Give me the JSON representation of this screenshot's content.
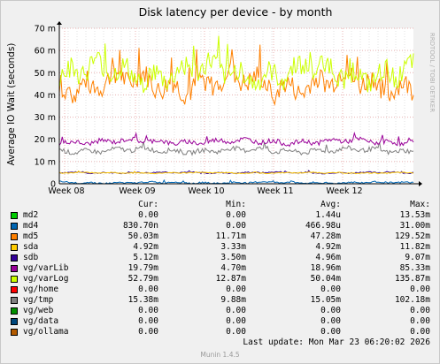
{
  "chart_data": {
    "type": "line",
    "title": "Disk latency per device - by month",
    "ylabel": "Average IO Wait (seconds)",
    "side_text": "RRDTOOL / TOBI OETIKER",
    "ylim": [
      0,
      70
    ],
    "ytick_labels": [
      "0",
      "10 m",
      "20 m",
      "30 m",
      "40 m",
      "50 m",
      "60 m",
      "70 m"
    ],
    "ytick_values": [
      0,
      10,
      20,
      30,
      40,
      50,
      60,
      70
    ],
    "xtick_labels": [
      "Week 08",
      "Week 09",
      "Week 10",
      "Week 11",
      "Week 12"
    ],
    "x_label_fraction": [
      0.015,
      0.215,
      0.41,
      0.605,
      0.8
    ],
    "grid": true,
    "columns": [
      "Cur:",
      "Min:",
      "Avg:",
      "Max:"
    ],
    "series": [
      {
        "name": "md2",
        "color": "#00cc00",
        "cur": "0.00",
        "min": "0.00",
        "avg": "1.44u",
        "max": "13.53m",
        "level": 0,
        "spread": 0
      },
      {
        "name": "md4",
        "color": "#0066b3",
        "cur": "830.70n",
        "min": "0.00",
        "avg": "466.98u",
        "max": "31.00m",
        "level": 0.5,
        "spread": 0.5
      },
      {
        "name": "md5",
        "color": "#ff8000",
        "cur": "50.03m",
        "min": "11.71m",
        "avg": "47.28m",
        "max": "129.52m",
        "level": 45,
        "spread": 7
      },
      {
        "name": "sda",
        "color": "#ffcc00",
        "cur": "4.92m",
        "min": "3.33m",
        "avg": "4.92m",
        "max": "11.82m",
        "level": 4.9,
        "spread": 0.3
      },
      {
        "name": "sdb",
        "color": "#330099",
        "cur": "5.12m",
        "min": "3.50m",
        "avg": "4.96m",
        "max": "9.07m",
        "level": 5.0,
        "spread": 0.4
      },
      {
        "name": "vg/varLib",
        "color": "#990099",
        "cur": "19.79m",
        "min": "4.70m",
        "avg": "18.96m",
        "max": "85.33m",
        "level": 19,
        "spread": 1.5
      },
      {
        "name": "vg/varLog",
        "color": "#ccff00",
        "cur": "52.79m",
        "min": "12.87m",
        "avg": "50.04m",
        "max": "135.87m",
        "level": 50,
        "spread": 7
      },
      {
        "name": "vg/home",
        "color": "#ff0000",
        "cur": "0.00",
        "min": "0.00",
        "avg": "0.00",
        "max": "0.00",
        "level": 0,
        "spread": 0
      },
      {
        "name": "vg/tmp",
        "color": "#808080",
        "cur": "15.38m",
        "min": "9.88m",
        "avg": "15.05m",
        "max": "102.18m",
        "level": 15,
        "spread": 1.5
      },
      {
        "name": "vg/web",
        "color": "#008f00",
        "cur": "0.00",
        "min": "0.00",
        "avg": "0.00",
        "max": "0.00",
        "level": 0,
        "spread": 0
      },
      {
        "name": "vg/data",
        "color": "#00487d",
        "cur": "0.00",
        "min": "0.00",
        "avg": "0.00",
        "max": "0.00",
        "level": 0,
        "spread": 0
      },
      {
        "name": "vg/ollama",
        "color": "#b35a00",
        "cur": "0.00",
        "min": "0.00",
        "avg": "0.00",
        "max": "0.00",
        "level": 0,
        "spread": 0
      }
    ]
  },
  "footer": {
    "last_update": "Last update:  Mon Mar 23 06:20:02 2026",
    "version": "Munin 1.4.5"
  }
}
